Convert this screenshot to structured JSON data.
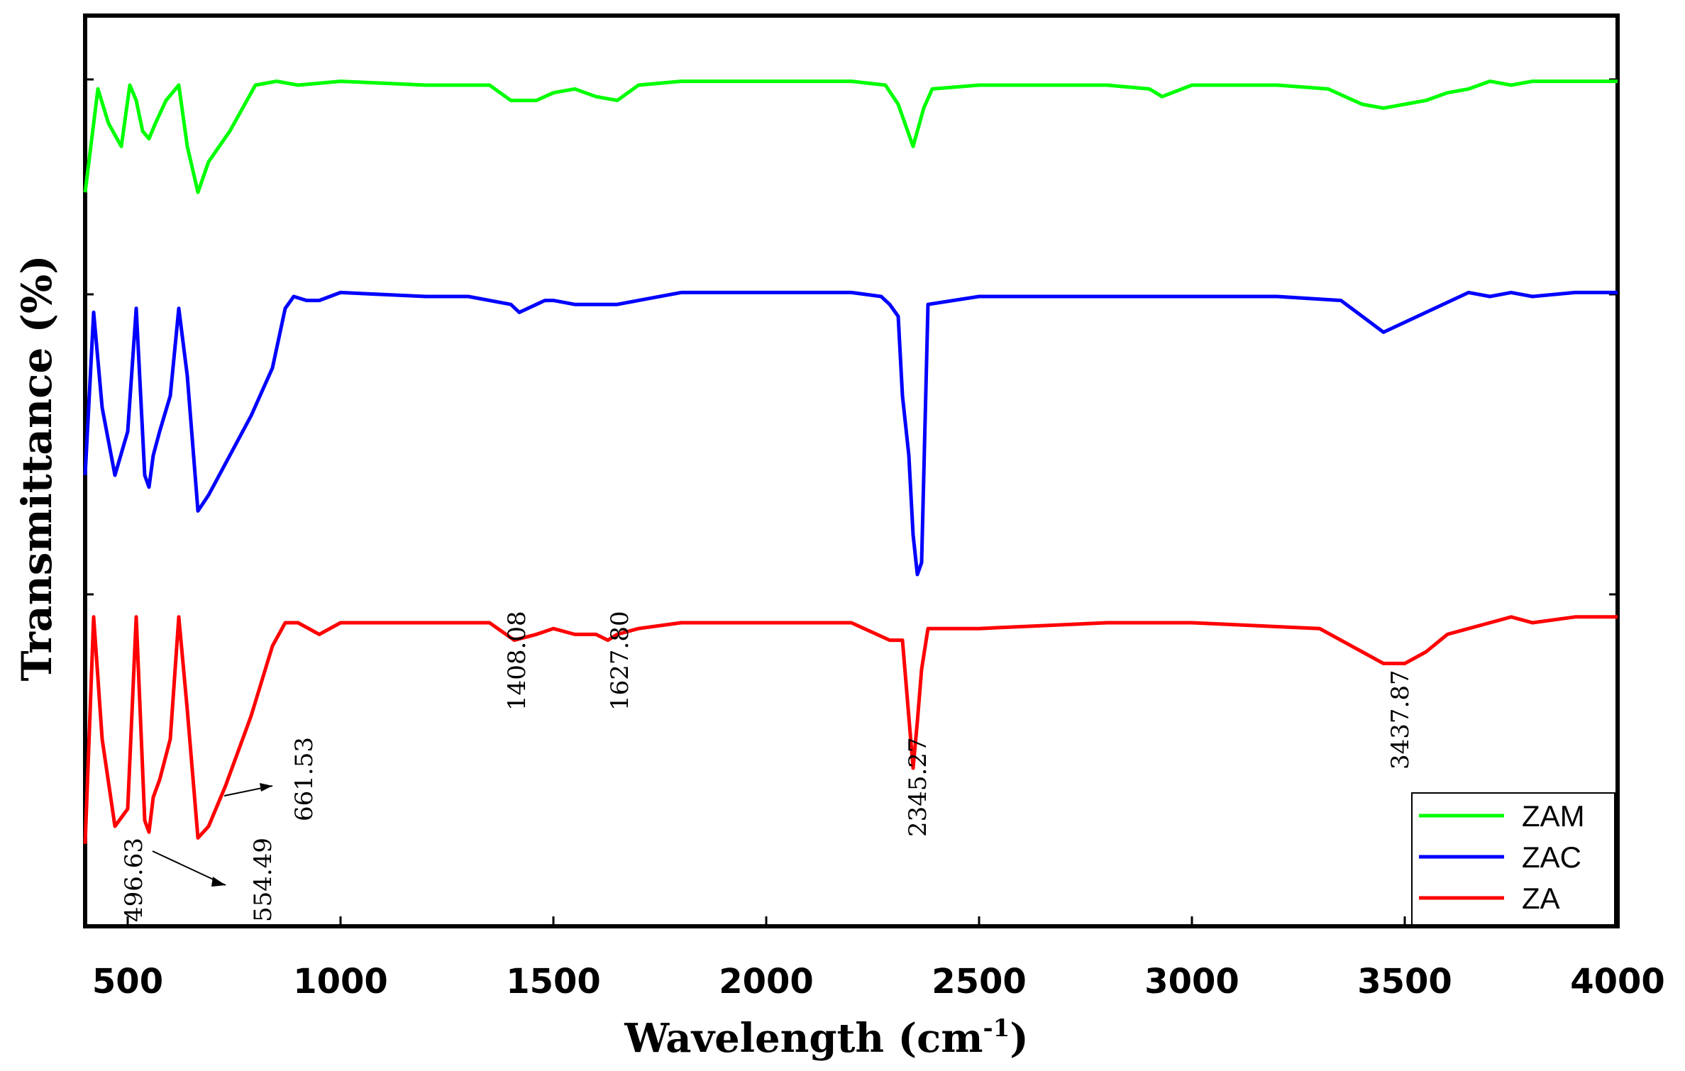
{
  "chart_data": {
    "type": "line",
    "title": "",
    "xlabel": "Wavelength (cm",
    "xlabel_superscript": "-1",
    "xlabel_suffix": ")",
    "ylabel": "Transmittance (%)",
    "xlim": [
      400,
      4000
    ],
    "xticks": [
      500,
      1000,
      1500,
      2000,
      2500,
      3000,
      3500,
      4000
    ],
    "yticks": [],
    "grid": false,
    "legend_position": "bottom-right",
    "series": [
      {
        "name": "ZAM",
        "color": "#00ff00",
        "x": [
          400,
          430,
          455,
          485,
          505,
          520,
          535,
          550,
          565,
          590,
          620,
          640,
          665,
          690,
          740,
          800,
          850,
          900,
          1000,
          1200,
          1350,
          1400,
          1460,
          1500,
          1550,
          1600,
          1650,
          1700,
          1800,
          2000,
          2200,
          2280,
          2310,
          2345,
          2370,
          2390,
          2500,
          2800,
          2900,
          2930,
          3000,
          3200,
          3320,
          3400,
          3450,
          3500,
          3550,
          3600,
          3650,
          3700,
          3750,
          3800,
          3900,
          4000
        ],
        "y": [
          72,
          99,
          90,
          84,
          100,
          96,
          88,
          86,
          90,
          96,
          100,
          84,
          72,
          80,
          88,
          100,
          101,
          100,
          101,
          100,
          100,
          96,
          96,
          98,
          99,
          97,
          96,
          100,
          101,
          101,
          101,
          100,
          95,
          84,
          94,
          99,
          100,
          100,
          99,
          97,
          100,
          100,
          99,
          95,
          94,
          95,
          96,
          98,
          99,
          101,
          100,
          101,
          101,
          101
        ]
      },
      {
        "name": "ZAC",
        "color": "#0000ff",
        "x": [
          400,
          420,
          440,
          470,
          500,
          520,
          540,
          550,
          560,
          575,
          600,
          620,
          640,
          665,
          690,
          730,
          790,
          840,
          870,
          890,
          920,
          950,
          1000,
          1200,
          1300,
          1400,
          1420,
          1480,
          1500,
          1550,
          1600,
          1650,
          1700,
          1800,
          2000,
          2200,
          2270,
          2290,
          2310,
          2320,
          2335,
          2345,
          2355,
          2365,
          2380,
          2500,
          3000,
          3200,
          3350,
          3450,
          3550,
          3650,
          3700,
          3750,
          3800,
          3900,
          4000
        ],
        "y": [
          55,
          96,
          72,
          55,
          66,
          97,
          55,
          52,
          60,
          66,
          75,
          97,
          80,
          46,
          50,
          58,
          70,
          82,
          97,
          100,
          99,
          99,
          101,
          100,
          100,
          98,
          96,
          99,
          99,
          98,
          98,
          98,
          99,
          101,
          101,
          101,
          100,
          98,
          95,
          75,
          60,
          40,
          30,
          33,
          98,
          100,
          100,
          100,
          99,
          91,
          96,
          101,
          100,
          101,
          100,
          101,
          101
        ]
      },
      {
        "name": "ZA",
        "color": "#ff0000",
        "x": [
          400,
          420,
          440,
          470,
          500,
          520,
          540,
          550,
          560,
          575,
          600,
          620,
          640,
          665,
          690,
          730,
          790,
          840,
          870,
          900,
          950,
          1000,
          1200,
          1350,
          1408,
          1460,
          1500,
          1550,
          1600,
          1628,
          1650,
          1700,
          1800,
          2000,
          2200,
          2290,
          2320,
          2345,
          2355,
          2365,
          2380,
          2420,
          2500,
          2800,
          2900,
          3000,
          3300,
          3400,
          3450,
          3500,
          3550,
          3600,
          3650,
          3700,
          3750,
          3800,
          3900,
          4000
        ],
        "y": [
          62,
          101,
          80,
          65,
          68,
          101,
          66,
          64,
          70,
          73,
          80,
          101,
          85,
          63,
          65,
          72,
          84,
          96,
          100,
          100,
          98,
          100,
          100,
          100,
          97,
          98,
          99,
          98,
          98,
          97,
          98,
          99,
          100,
          100,
          100,
          97,
          97,
          75,
          83,
          92,
          99,
          99,
          99,
          100,
          100,
          100,
          99,
          95,
          93,
          93,
          95,
          98,
          99,
          100,
          101,
          100,
          101,
          101
        ]
      }
    ],
    "annotations": [
      {
        "text": "496.63",
        "series": "ZA",
        "x": 496.63
      },
      {
        "text": "554.49",
        "series": "ZA",
        "x": 554.49
      },
      {
        "text": "661.53",
        "series": "ZA",
        "x": 661.53
      },
      {
        "text": "1408.08",
        "series": "ZA",
        "x": 1408.08
      },
      {
        "text": "1627.80",
        "series": "ZA",
        "x": 1627.8
      },
      {
        "text": "2345.27",
        "series": "ZA",
        "x": 2345.27
      },
      {
        "text": "3437.87",
        "series": "ZA",
        "x": 3437.87
      }
    ],
    "legend": [
      "ZAM",
      "ZAC",
      "ZA"
    ]
  }
}
